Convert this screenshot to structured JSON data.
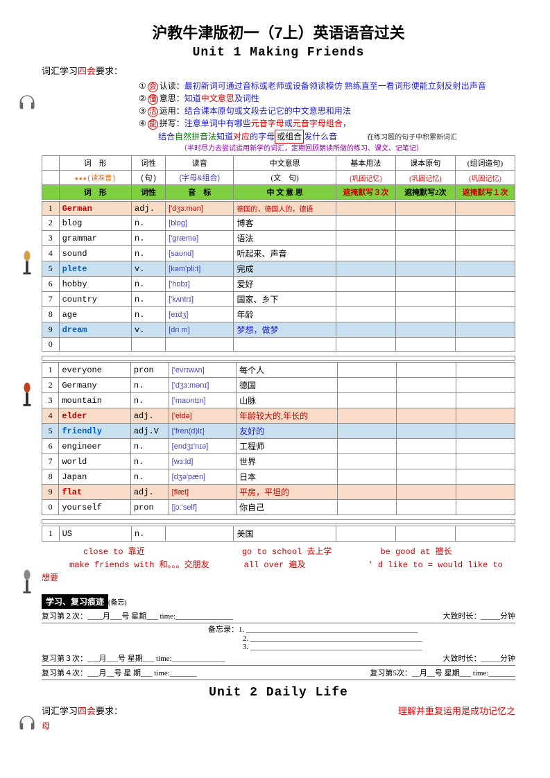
{
  "titles": {
    "main": "沪教牛津版初一（7上）英语语音过关",
    "unit1": "Unit 1  Making Friends",
    "unit2": "Unit  2  Daily Life"
  },
  "requirement": {
    "prefix": "词汇学习",
    "key": "四会",
    "suffix": "要求："
  },
  "rules": {
    "r1": {
      "n": "①",
      "k": "会",
      "t": "认读：",
      "d": "最初新词可通过音标或老师或设备领读模仿  熟练直至一看词形便能立刻反射出声音"
    },
    "r2": {
      "n": "②",
      "k": "懂",
      "t": "意思：",
      "d1": "知道",
      "d2": "中文意思",
      "d3": "及词性"
    },
    "r3": {
      "n": "③",
      "k": "活",
      "t": "运用：",
      "d": "结合课本原句或文段去记它的中文意思和用法"
    },
    "r4": {
      "n": "④",
      "k": "能",
      "t": "拼写：",
      "d1": "注意单词中有哪些",
      "d2": "元音字母",
      "d3": "或",
      "d4": "元音字母组合",
      "d5": "，"
    },
    "r4b": {
      "d1": "结合",
      "d2": "自然拼音法",
      "d3": "知道",
      "d4": "对应",
      "d5": "的字母",
      "d6": "或组合",
      "d7": "发什么音",
      "tail": "在练习题的句子中积累新词汇"
    },
    "note": "（半时尽力去尝试运用新学的词汇，定期回顾朗读所做的练习、课文、记笔记）"
  },
  "cols": {
    "c1": "词　形",
    "c2": "词性",
    "c3": "读音",
    "c4": "中文意思",
    "c5": "基本用法",
    "c6": "课本原句",
    "c7": "(组词造句)"
  },
  "sub": {
    "s1": "★★★(读准音)",
    "s2": "(句)",
    "s3": "(字母&组合)",
    "s4": "(文　句)",
    "s5": "(巩固记忆)",
    "s6": "(巩固记忆)",
    "s7": "(巩固记忆)"
  },
  "ghead": {
    "g1": "词　形",
    "g2": "词性",
    "g3": "音　标",
    "g4": "中 文 意 思",
    "g5": "遮掩默写３次",
    "g6": "遮掩默写2次",
    "g7": "遮掩默写１次"
  },
  "t1": [
    {
      "n": "1",
      "w": "German",
      "p": "adj.",
      "i": "['dʒɜ:mən]",
      "m": "德国的，德国人的，德语",
      "hl": "peach",
      "wc": "red",
      "ic": "red",
      "mc": "red",
      "ms": "10px"
    },
    {
      "n": "2",
      "w": "blog",
      "p": "n.",
      "i": "[blɒg]",
      "m": "博客"
    },
    {
      "n": "3",
      "w": "grammar",
      "p": "n.",
      "i": "['græmə]",
      "m": "语法"
    },
    {
      "n": "4",
      "w": "sound",
      "p": "n.",
      "i": "[saʊnd]",
      "m": "听起来、声音"
    },
    {
      "n": "5",
      "w": "plete",
      "p": "v.",
      "i": "[kəm'pli:t]",
      "m": "完成",
      "hl": "blue",
      "wc": "blue"
    },
    {
      "n": "6",
      "w": "hobby",
      "p": "n.",
      "i": "['hɒbɪ]",
      "m": "爱好"
    },
    {
      "n": "7",
      "w": "country",
      "p": "n.",
      "i": "['kʌntrɪ]",
      "m": "国家、乡下"
    },
    {
      "n": "8",
      "w": "age",
      "p": "n.",
      "i": "[eɪdʒ]",
      "m": "年龄"
    },
    {
      "n": "9",
      "w": "dream",
      "p": "v.",
      "i": "[dri m]",
      "m": "梦想，做梦",
      "hl": "blue",
      "wc": "blue",
      "mc": "blue"
    },
    {
      "n": "0",
      "w": "",
      "p": "",
      "i": "",
      "m": ""
    }
  ],
  "t2": [
    {
      "n": "1",
      "w": "everyone",
      "p": "pron",
      "i": "['evrɪwʌn]",
      "m": "每个人"
    },
    {
      "n": "2",
      "w": "Germany",
      "p": "n.",
      "i": "['dʒɜ:mənɪ]",
      "m": "德国"
    },
    {
      "n": "3",
      "w": "mountain",
      "p": "n.",
      "i": "['maʊntɪn]",
      "m": "山脉"
    },
    {
      "n": "4",
      "w": "elder",
      "p": "adj.",
      "i": "['eldə]",
      "m": "年龄较大的,年长的",
      "hl": "peach",
      "wc": "red",
      "ic": "red",
      "mc": "red"
    },
    {
      "n": "5",
      "w": "friendly",
      "p": "adj.V",
      "i": "['fren(d)lɪ]",
      "m": "友好的",
      "hl": "blue",
      "wc": "blue",
      "mc": "blue"
    },
    {
      "n": "6",
      "w": "engineer",
      "p": "n.",
      "i": "[endʒɪ'nɪə]",
      "m": "工程师"
    },
    {
      "n": "7",
      "w": "world",
      "p": "n.",
      "i": "[wɜ:ld]",
      "m": "世界"
    },
    {
      "n": "8",
      "w": "Japan",
      "p": "n.",
      "i": "[dʒə'pæn]",
      "m": "日本"
    },
    {
      "n": "9",
      "w": "flat",
      "p": "adj.",
      "i": "[flæt]",
      "m": "平房，平坦的",
      "hl": "peach",
      "wc": "red",
      "ic": "red",
      "mc": "red"
    },
    {
      "n": "0",
      "w": "yourself",
      "p": "pron",
      "i": "[jɔ:'self]",
      "m": "你自己"
    }
  ],
  "t3": [
    {
      "n": "1",
      "w": "US",
      "p": "n.",
      "i": "",
      "m": "美国"
    }
  ],
  "phrases": {
    "l1a": "close to   靠近",
    "l1b": "go to school   去上学",
    "l1c": "be good at 擅长",
    "l2a": "make friends with   和。。。交朋友",
    "l2b": "all over 遍及",
    "l2c": "' d like to   = would like to 想要"
  },
  "study": {
    "title": "学习、复习痕迹",
    "note": "(备忘)",
    "r2": "复习第２次：____月___号 星期___  time:_______________",
    "r2t": "大致时长：_____分钟",
    "memo": "备忘录：",
    "m1": "1. _____________________________________________",
    "m2": "2. _____________________________________________",
    "m3": "3. _____________________________________________",
    "r3": "复习第３次：___月___号 星期___   time:______________",
    "r3t": "大致时长：_____分钟",
    "r4": "复习第４次：___月__号 星 期___  time:_______",
    "r5": "复习第5次：__月__号 星期___  time:_______"
  },
  "footer": {
    "t": "理解并重复运用是成功记忆之",
    "t2": "母"
  }
}
